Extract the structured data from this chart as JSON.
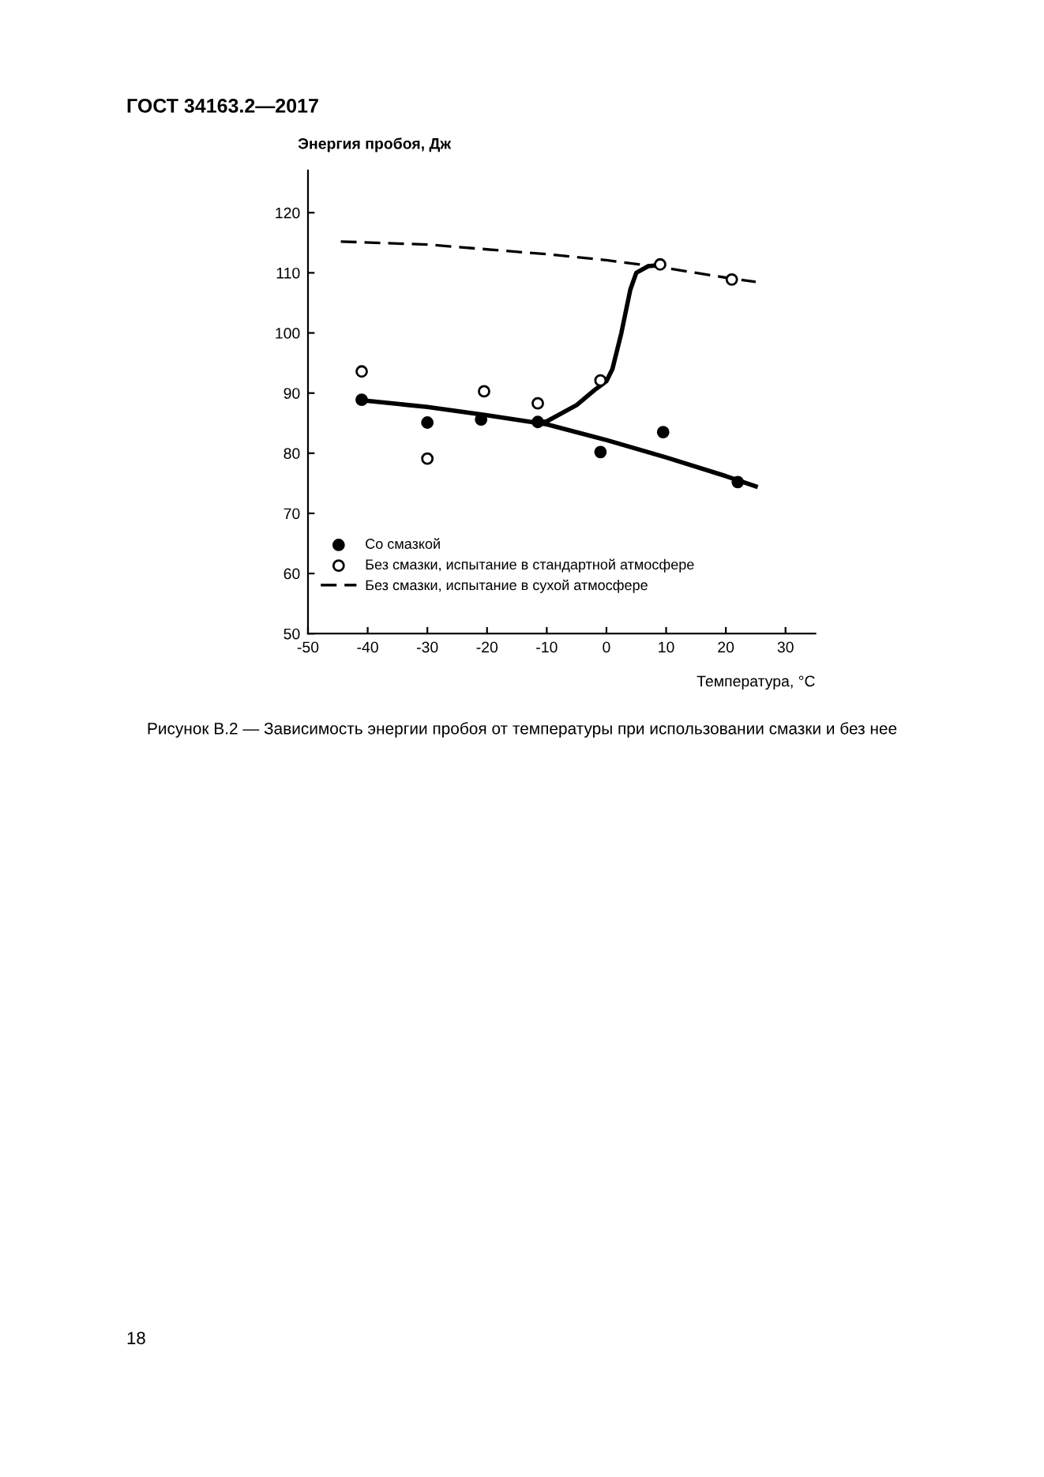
{
  "chart_data": {
    "type": "scatter",
    "title": "Рисунок В.2 — Зависимость энергии пробоя от температуры при использовании смазки и без нее",
    "xlabel": "Температура, °С",
    "ylabel": "Энергия пробоя, Дж",
    "annotations": [
      "ГОСТ 34163.2—2017",
      "18"
    ],
    "xlim": [
      -50,
      35
    ],
    "ylim": [
      50,
      127
    ],
    "xticks": [
      -50,
      -40,
      -30,
      -20,
      -10,
      0,
      10,
      20,
      30
    ],
    "yticks": [
      50,
      60,
      70,
      80,
      90,
      100,
      110,
      120
    ],
    "grid": false,
    "legend": "bottom left",
    "series": [
      {
        "name": "Со смазкой",
        "marker": "circle",
        "color": "#000000",
        "x": [
          -41,
          -30,
          -21,
          -11.5,
          -1,
          9.5,
          22
        ],
        "values": [
          88.9,
          85.1,
          85.6,
          85.2,
          80.2,
          83.5,
          75.2
        ]
      },
      {
        "name": "Без смазки, испытание в стандартной атмосфере",
        "marker": "circle",
        "color": "#ffffff",
        "x": [
          -41,
          -30,
          -20.5,
          -11.5,
          -1,
          9,
          21
        ],
        "values": [
          93.6,
          79.1,
          90.3,
          88.3,
          92.1,
          111.4,
          108.9
        ]
      },
      {
        "name": "Без смазки, испытание в сухой атмосфере",
        "type": "line",
        "marker": "none",
        "line_style": "dashed",
        "color": "#000000",
        "x": [
          -44.5,
          -30,
          -20,
          -10,
          0,
          10,
          20,
          25
        ],
        "values": [
          115.2,
          114.7,
          113.9,
          113.1,
          112.1,
          110.8,
          109.2,
          108.5
        ]
      },
      {
        "type": "line",
        "marker": "none",
        "line_style": "solid",
        "color": "#000000",
        "x": [
          -41,
          -30,
          -20,
          -10,
          0,
          10,
          20,
          25
        ],
        "values": [
          88.8,
          87.7,
          86.3,
          84.8,
          82.2,
          79.3,
          76.2,
          74.5
        ]
      },
      {
        "type": "line",
        "marker": "none",
        "line_style": "solid",
        "color": "#000000",
        "x": [
          -12,
          -10,
          -5,
          -2,
          0,
          1,
          2.5,
          4,
          5,
          7,
          9
        ],
        "values": [
          85,
          85.3,
          88,
          90.5,
          92,
          94,
          100,
          107.2,
          110,
          111.1,
          111.3
        ]
      }
    ]
  }
}
